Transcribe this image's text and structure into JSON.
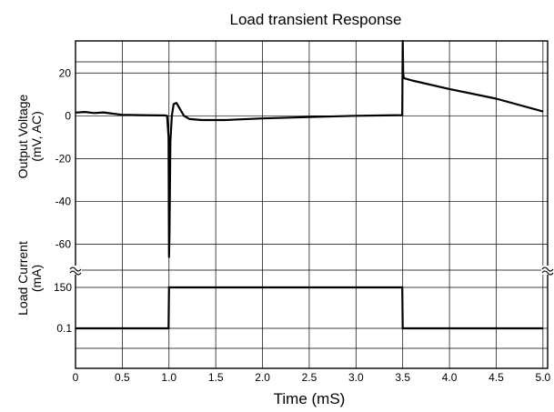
{
  "chart_data": {
    "type": "line",
    "title": "Load transient Response",
    "xlabel": "Time (mS)",
    "xlim": [
      0,
      5.05
    ],
    "x_ticks": [
      "0",
      "0.5",
      "1.0",
      "1.5",
      "2.0",
      "2.5",
      "3.0",
      "3.5",
      "4.0",
      "4.5",
      "5.0"
    ],
    "x_tick_values": [
      0,
      0.5,
      1.0,
      1.5,
      2.0,
      2.5,
      3.0,
      3.5,
      4.0,
      4.5,
      5.0
    ],
    "grid": true,
    "panels": [
      {
        "name": "voltage",
        "ylabel_lines": [
          "Output Voltage",
          "(mV, AC)"
        ],
        "ylim": [
          -70,
          35
        ],
        "y_ticks": [
          "20",
          "0",
          "-20",
          "-40",
          "-60"
        ],
        "y_tick_values": [
          20,
          0,
          -20,
          -40,
          -60
        ],
        "series": [
          {
            "x": [
              0,
              0.1,
              0.2,
              0.3,
              0.4,
              0.5,
              0.7,
              0.9,
              0.95,
              0.98,
              0.995,
              1.0,
              1.005,
              1.015,
              1.03,
              1.05,
              1.08,
              1.12,
              1.16,
              1.22,
              1.35,
              1.6,
              2.0,
              2.5,
              3.0,
              3.3,
              3.495,
              3.5,
              3.505,
              3.51,
              3.52,
              3.6,
              4.0,
              4.5,
              5.0
            ],
            "y": [
              1.5,
              1.8,
              1.3,
              1.6,
              1.0,
              0.5,
              0.3,
              0.2,
              0.2,
              0.0,
              -10,
              -66,
              -55,
              -12,
              0,
              5.5,
              6.0,
              3.0,
              0.0,
              -1.5,
              -2.0,
              -2.0,
              -1.2,
              -0.6,
              0.0,
              0.2,
              0.3,
              35,
              20,
              18,
              17.5,
              16.5,
              12.5,
              8.0,
              2.0
            ]
          }
        ]
      },
      {
        "name": "current",
        "ylabel_lines": [
          "Load Current",
          "(mA)"
        ],
        "y_ticks": [
          "150",
          "0.1"
        ],
        "y_tick_values": [
          150,
          0.1
        ],
        "series": [
          {
            "x": [
              0,
              0.995,
              1.0,
              1.005,
              3.49,
              3.495,
              3.5,
              5.0
            ],
            "y": [
              0.1,
              0.1,
              150,
              150,
              150,
              150,
              0.1,
              0.1
            ]
          }
        ]
      }
    ]
  }
}
